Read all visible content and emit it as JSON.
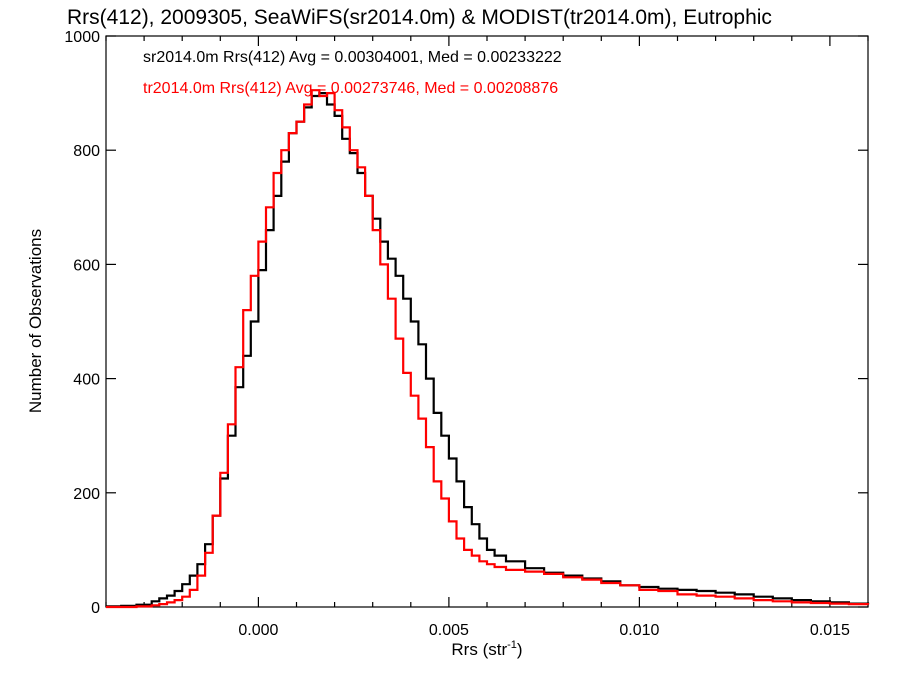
{
  "chart_data": {
    "type": "line",
    "title": "Rrs(412), 2009305, SeaWiFS(sr2014.0m) & MODIST(tr2014.0m), Eutrophic",
    "xlabel": "Rrs (str",
    "xlabel_superscript": "-1",
    "xlabel_suffix": ")",
    "ylabel": "Number of Observations",
    "xlim": [
      -0.004,
      0.016
    ],
    "ylim": [
      0,
      1000
    ],
    "x_ticks": [
      0.0,
      0.005,
      0.01,
      0.015
    ],
    "x_tick_labels": [
      "0.000",
      "0.005",
      "0.010",
      "0.015"
    ],
    "y_ticks": [
      0,
      200,
      400,
      600,
      800,
      1000
    ],
    "y_tick_labels": [
      "0",
      "200",
      "400",
      "600",
      "800",
      "1000"
    ],
    "grid": false,
    "annotations": [
      {
        "text": "sr2014.0m Rrs(412) Avg = 0.00304001, Med = 0.00233222",
        "color": "#000000"
      },
      {
        "text": "tr2014.0m Rrs(412) Avg = 0.00273746, Med = 0.00208876",
        "color": "#ff0000"
      }
    ],
    "series": [
      {
        "color": "#000000",
        "x": [
          -0.004,
          -0.0036,
          -0.0032,
          -0.0028,
          -0.0026,
          -0.0024,
          -0.0022,
          -0.002,
          -0.0018,
          -0.0016,
          -0.0014,
          -0.0012,
          -0.001,
          -0.0008,
          -0.0006,
          -0.0004,
          -0.0002,
          0.0,
          0.0002,
          0.0004,
          0.0006,
          0.0008,
          0.001,
          0.0012,
          0.0014,
          0.0016,
          0.0018,
          0.002,
          0.0022,
          0.0024,
          0.0026,
          0.0028,
          0.003,
          0.0032,
          0.0034,
          0.0036,
          0.0038,
          0.004,
          0.0042,
          0.0044,
          0.0046,
          0.0048,
          0.005,
          0.0052,
          0.0054,
          0.0056,
          0.0058,
          0.006,
          0.0062,
          0.0065,
          0.007,
          0.0075,
          0.008,
          0.0085,
          0.009,
          0.0095,
          0.01,
          0.0105,
          0.011,
          0.0115,
          0.012,
          0.0125,
          0.013,
          0.0135,
          0.014,
          0.0145,
          0.015,
          0.0155,
          0.016
        ],
        "values": [
          1,
          2,
          4,
          10,
          15,
          20,
          28,
          40,
          55,
          75,
          110,
          160,
          225,
          300,
          385,
          440,
          500,
          590,
          660,
          720,
          780,
          830,
          850,
          875,
          895,
          900,
          880,
          860,
          820,
          795,
          760,
          720,
          680,
          640,
          610,
          580,
          540,
          500,
          460,
          400,
          340,
          300,
          260,
          220,
          175,
          145,
          120,
          100,
          90,
          80,
          68,
          60,
          55,
          50,
          45,
          38,
          35,
          32,
          30,
          28,
          25,
          22,
          18,
          15,
          12,
          10,
          8,
          6,
          5
        ]
      },
      {
        "color": "#ff0000",
        "x": [
          -0.004,
          -0.0036,
          -0.0032,
          -0.0028,
          -0.0026,
          -0.0024,
          -0.0022,
          -0.002,
          -0.0018,
          -0.0016,
          -0.0014,
          -0.0012,
          -0.001,
          -0.0008,
          -0.0006,
          -0.0004,
          -0.0002,
          0.0,
          0.0002,
          0.0004,
          0.0006,
          0.0008,
          0.001,
          0.0012,
          0.0014,
          0.0016,
          0.0018,
          0.002,
          0.0022,
          0.0024,
          0.0026,
          0.0028,
          0.003,
          0.0032,
          0.0034,
          0.0036,
          0.0038,
          0.004,
          0.0042,
          0.0044,
          0.0046,
          0.0048,
          0.005,
          0.0052,
          0.0054,
          0.0056,
          0.0058,
          0.006,
          0.0062,
          0.0065,
          0.007,
          0.0075,
          0.008,
          0.0085,
          0.009,
          0.0095,
          0.01,
          0.0105,
          0.011,
          0.0115,
          0.012,
          0.0125,
          0.013,
          0.0135,
          0.014,
          0.0145,
          0.015,
          0.0155,
          0.016
        ],
        "values": [
          0,
          0,
          1,
          3,
          5,
          8,
          12,
          18,
          30,
          55,
          95,
          160,
          235,
          320,
          420,
          520,
          580,
          640,
          700,
          760,
          800,
          830,
          850,
          880,
          905,
          895,
          900,
          870,
          840,
          800,
          770,
          720,
          660,
          600,
          540,
          470,
          410,
          370,
          330,
          280,
          220,
          190,
          150,
          120,
          100,
          90,
          80,
          75,
          70,
          65,
          62,
          58,
          52,
          48,
          42,
          38,
          30,
          28,
          22,
          20,
          18,
          15,
          12,
          10,
          8,
          7,
          6,
          5,
          4
        ]
      }
    ]
  }
}
